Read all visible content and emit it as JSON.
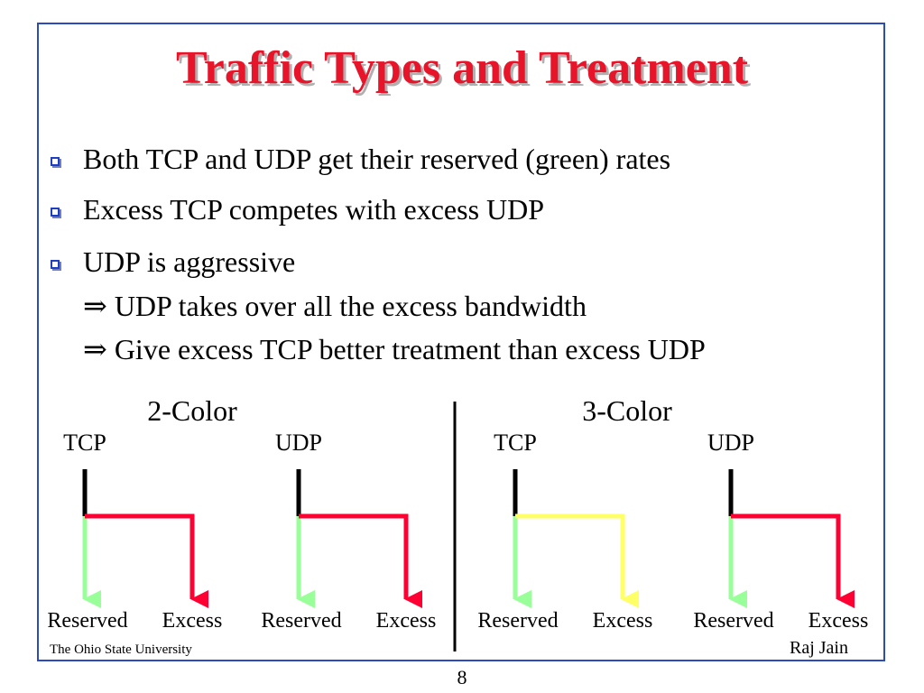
{
  "slide": {
    "title": "Traffic Types and Treatment",
    "bullets": [
      "Both TCP and UDP get their reserved (green) rates",
      "Excess TCP competes with excess UDP",
      "UDP is aggressive"
    ],
    "implies_symbol": "⇒",
    "sub_points": [
      "UDP takes over all the excess bandwidth",
      "Give excess TCP better treatment than excess UDP"
    ],
    "footer_left": "The Ohio State University",
    "footer_right": "Raj Jain",
    "page_number": "8"
  },
  "diagram": {
    "colors": {
      "input": "#000000",
      "green": "#99ff99",
      "yellow": "#ffff66",
      "red": "#ff0033",
      "divider": "#000000"
    },
    "groups": [
      {
        "heading": "2-Color",
        "flows": [
          {
            "label": "TCP",
            "reserved_label": "Reserved",
            "excess_label": "Excess",
            "excess_color": "red"
          },
          {
            "label": "UDP",
            "reserved_label": "Reserved",
            "excess_label": "Excess",
            "excess_color": "red"
          }
        ]
      },
      {
        "heading": "3-Color",
        "flows": [
          {
            "label": "TCP",
            "reserved_label": "Reserved",
            "excess_label": "Excess",
            "excess_color": "yellow"
          },
          {
            "label": "UDP",
            "reserved_label": "Reserved",
            "excess_label": "Excess",
            "excess_color": "red"
          }
        ]
      }
    ]
  }
}
